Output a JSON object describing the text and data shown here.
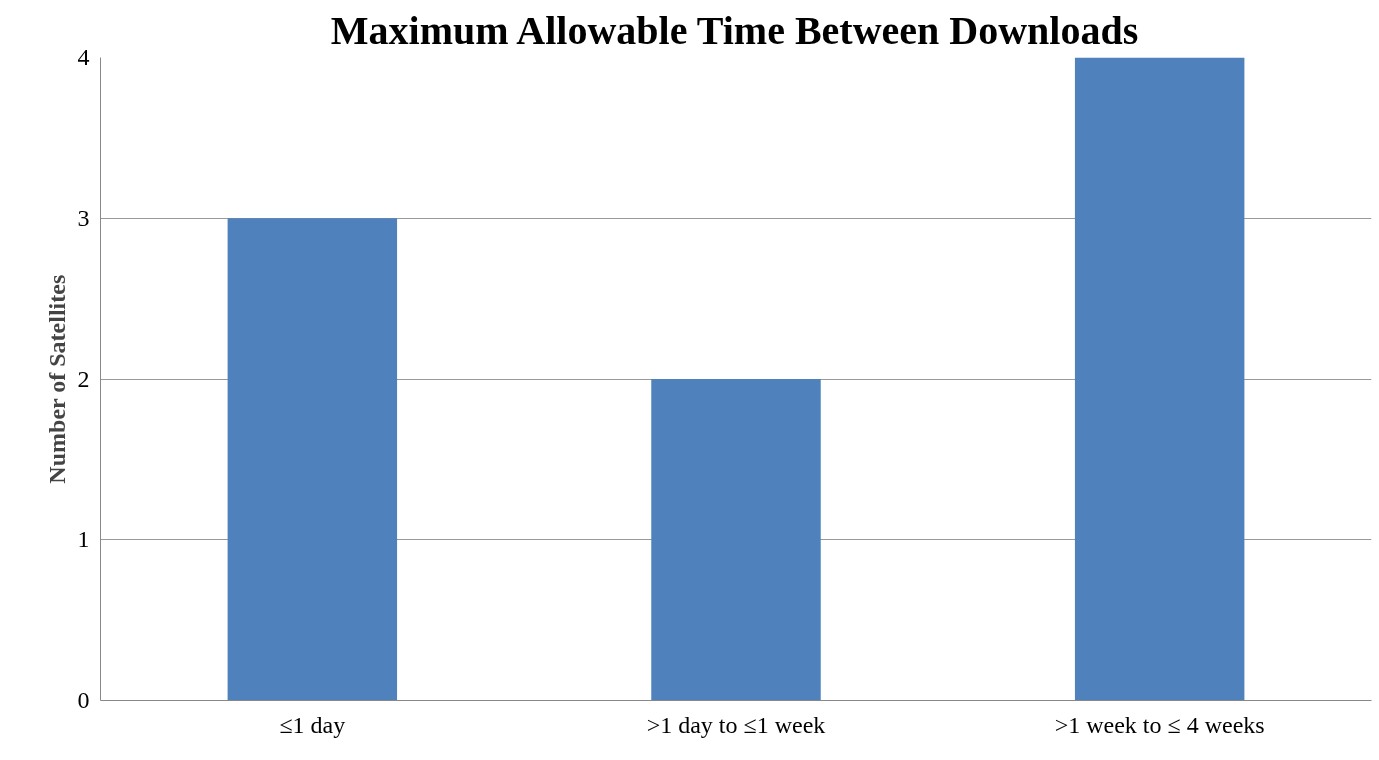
{
  "chart_data": {
    "type": "bar",
    "title": "Maximum Allowable Time Between Downloads",
    "ylabel": "Number of Satellites",
    "categories": [
      "≤1 day",
      ">1 day to ≤1 week",
      ">1 week to ≤ 4 weeks"
    ],
    "values": [
      3,
      2,
      4
    ],
    "color": "#4f81bd",
    "ylim": [
      0,
      4
    ],
    "yticks": [
      0,
      1,
      2,
      3,
      4
    ],
    "grid": "y"
  }
}
